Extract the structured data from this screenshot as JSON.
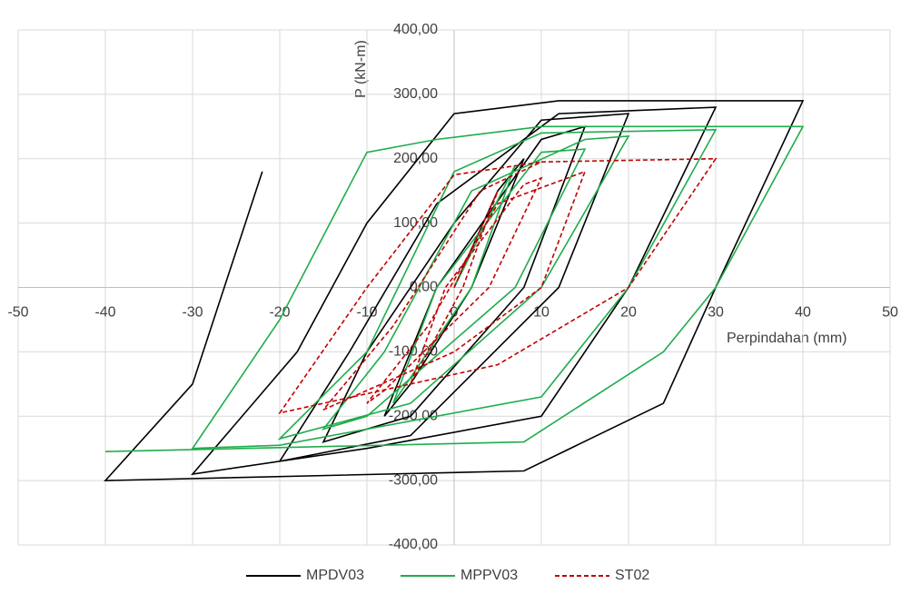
{
  "chart_data": {
    "type": "line",
    "xlabel": "Perpindahan (mm)",
    "ylabel": "P (kN-m)",
    "xlim": [
      -50,
      50
    ],
    "xticks": [
      -50,
      -40,
      -30,
      -20,
      -10,
      0,
      10,
      20,
      30,
      40,
      50
    ],
    "ylim": [
      -400,
      400
    ],
    "yticks": [
      {
        "value": -400,
        "label": "-400,00"
      },
      {
        "value": -300,
        "label": "-300,00"
      },
      {
        "value": -200,
        "label": "-200,00"
      },
      {
        "value": -100,
        "label": "-100,00"
      },
      {
        "value": 0,
        "label": "0,00"
      },
      {
        "value": 100,
        "label": "100,00"
      },
      {
        "value": 200,
        "label": "200,00"
      },
      {
        "value": 300,
        "label": "300,00"
      },
      {
        "value": 400,
        "label": "400,00"
      }
    ],
    "grid": true,
    "legend": "bottom",
    "series": [
      {
        "name": "MPDV03",
        "color": "#000000",
        "dashed": false,
        "x": [
          0,
          5,
          8,
          2,
          -5,
          -8,
          -2,
          10,
          15,
          8,
          -5,
          -15,
          -10,
          0,
          10,
          20,
          12,
          -5,
          -20,
          -12,
          -2,
          12,
          30,
          20,
          10,
          -10,
          -30,
          -18,
          -10,
          0,
          12,
          40,
          30,
          24,
          8,
          -40,
          -30,
          -22
        ],
        "values": [
          0,
          150,
          200,
          0,
          -150,
          -200,
          0,
          230,
          250,
          0,
          -200,
          -240,
          -100,
          100,
          260,
          270,
          0,
          -230,
          -270,
          -100,
          130,
          270,
          280,
          0,
          -200,
          -250,
          -290,
          -100,
          100,
          270,
          290,
          290,
          0,
          -180,
          -285,
          -300,
          -150,
          180
        ]
      },
      {
        "name": "MPPV03",
        "color": "#1fad4b",
        "dashed": false,
        "x": [
          0,
          7,
          2,
          -7,
          -2,
          10,
          15,
          7,
          -10,
          -15,
          -8,
          2,
          15,
          20,
          10,
          -5,
          -20,
          -10,
          0,
          10,
          30,
          20,
          10,
          -20,
          -30,
          -20,
          -10,
          -2,
          10,
          40,
          30,
          24,
          8,
          -40
        ],
        "values": [
          0,
          190,
          0,
          -180,
          0,
          210,
          215,
          0,
          -200,
          -220,
          -100,
          150,
          230,
          235,
          0,
          -180,
          -235,
          -100,
          180,
          240,
          245,
          0,
          -170,
          -245,
          -250,
          -50,
          210,
          230,
          250,
          250,
          0,
          -100,
          -240,
          -255
        ]
      },
      {
        "name": "ST02",
        "color": "#c00000",
        "dashed": true,
        "x": [
          0,
          5,
          1,
          -5,
          -1,
          8,
          10,
          4,
          -8,
          -10,
          -3,
          5,
          15,
          10,
          0,
          -15,
          -7,
          3,
          10,
          30,
          20,
          5,
          -20,
          -10,
          0,
          10
        ],
        "values": [
          0,
          150,
          0,
          -150,
          0,
          160,
          170,
          0,
          -160,
          -180,
          -60,
          130,
          180,
          0,
          -100,
          -190,
          -60,
          150,
          195,
          200,
          0,
          -120,
          -195,
          0,
          175,
          195
        ]
      }
    ]
  }
}
